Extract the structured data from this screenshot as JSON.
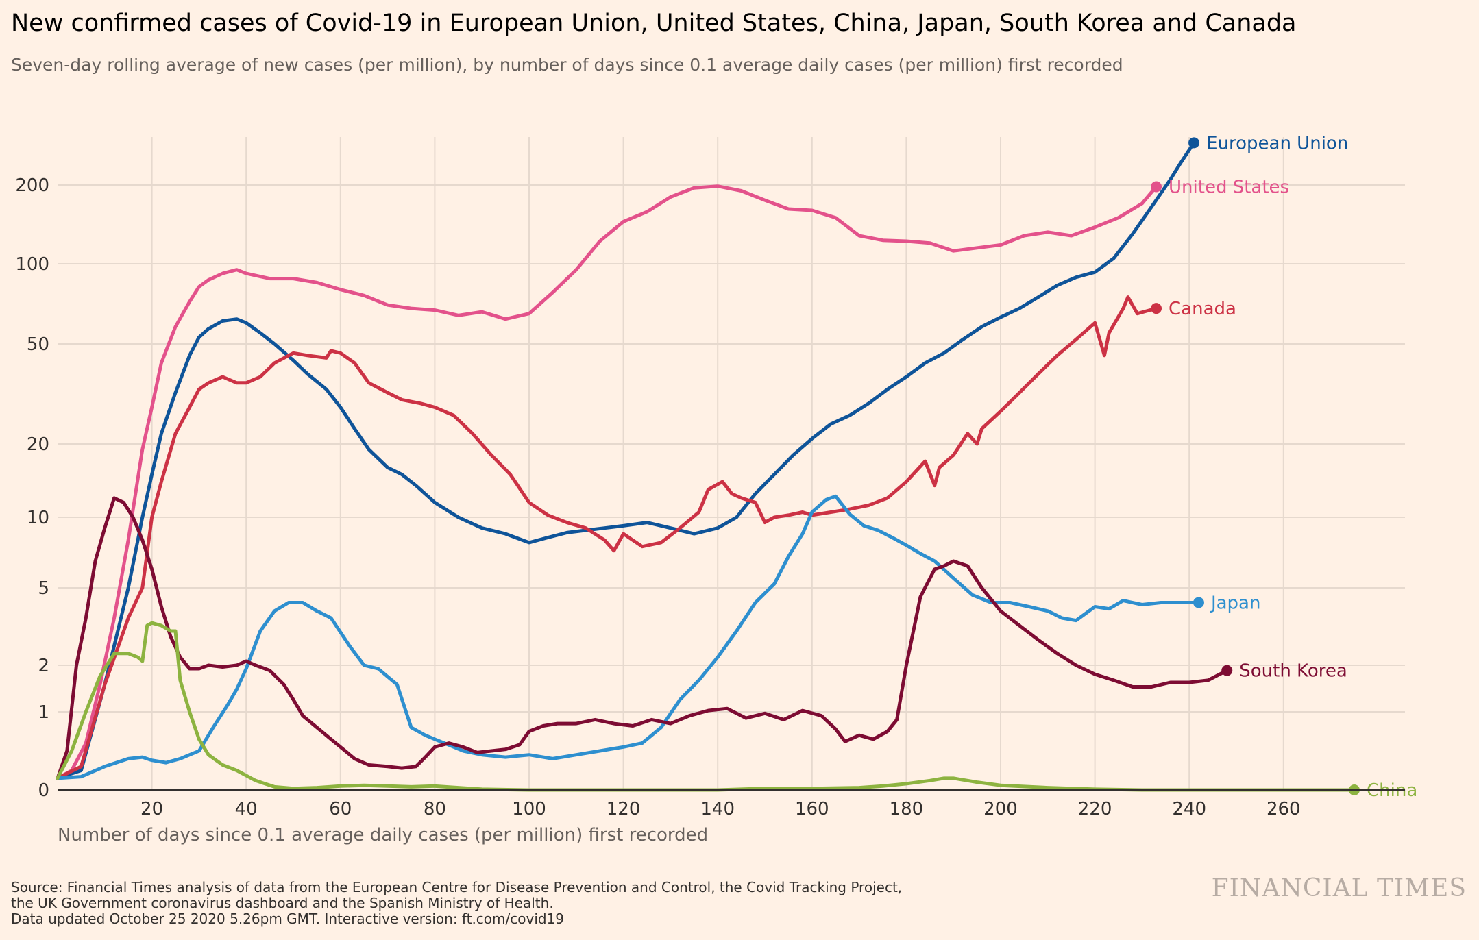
{
  "header": {
    "title": "New confirmed cases of Covid-19 in European Union, United States, China, Japan, South Korea and Canada",
    "subtitle": "Seven-day rolling average of new cases (per million), by number of days since 0.1 average daily cases (per million) first recorded"
  },
  "footer": {
    "source_lines": [
      "Source: Financial Times analysis of data from the European Centre for Disease Prevention and Control, the Covid Tracking Project,",
      "the UK Government coronavirus dashboard and the Spanish Ministry of Health.",
      "Data updated October 25 2020 5.26pm GMT. Interactive version: ft.com/covid19"
    ],
    "logo": "FINANCIAL TIMES"
  },
  "chart_data": {
    "type": "line",
    "title": "New confirmed cases of Covid-19 in European Union, United States, China, Japan, South Korea and Canada",
    "subtitle": "Seven-day rolling average of new cases (per million), by number of days since 0.1 average daily cases (per million) first recorded",
    "xlabel": "Number of days since 0.1 average daily cases (per million) first recorded",
    "ylabel": "",
    "y_scale": "symlog",
    "xlim": [
      0,
      275
    ],
    "ylim": [
      0,
      300
    ],
    "x_ticks": [
      20,
      40,
      60,
      80,
      100,
      120,
      140,
      160,
      180,
      200,
      220,
      240,
      260
    ],
    "y_ticks": [
      0,
      1,
      2,
      5,
      10,
      20,
      50,
      100,
      200
    ],
    "grid": true,
    "legend": "inline labels at line ends",
    "series": [
      {
        "name": "European Union",
        "color": "#0f5499",
        "x": [
          0,
          5,
          10,
          15,
          18,
          20,
          22,
          25,
          28,
          30,
          32,
          35,
          38,
          40,
          43,
          46,
          50,
          53,
          57,
          60,
          63,
          66,
          70,
          73,
          76,
          80,
          85,
          90,
          95,
          100,
          104,
          108,
          112,
          116,
          120,
          125,
          130,
          135,
          140,
          144,
          148,
          152,
          156,
          160,
          164,
          168,
          172,
          176,
          180,
          184,
          188,
          192,
          196,
          200,
          204,
          208,
          212,
          216,
          220,
          224,
          228,
          232,
          236,
          238,
          241
        ],
        "values": [
          0.15,
          0.25,
          1.5,
          5,
          10,
          15,
          22,
          32,
          45,
          53,
          57,
          61,
          62,
          60,
          55,
          50,
          43,
          38,
          33,
          28,
          23,
          19,
          16,
          15,
          13.5,
          11.5,
          10,
          9,
          8.5,
          7.8,
          8.2,
          8.6,
          8.8,
          9,
          9.2,
          9.5,
          9,
          8.5,
          9,
          10,
          12.5,
          15,
          18,
          21,
          24,
          26,
          29,
          33,
          37,
          42,
          46,
          52,
          58,
          63,
          68,
          75,
          83,
          89,
          93,
          105,
          130,
          165,
          210,
          240,
          290
        ]
      },
      {
        "name": "United States",
        "color": "#e3528b",
        "x": [
          0,
          3,
          6,
          9,
          12,
          15,
          18,
          20,
          22,
          25,
          28,
          30,
          32,
          35,
          38,
          40,
          45,
          50,
          55,
          60,
          65,
          70,
          75,
          80,
          85,
          90,
          95,
          100,
          105,
          110,
          115,
          120,
          125,
          130,
          135,
          140,
          145,
          150,
          155,
          160,
          165,
          170,
          175,
          180,
          185,
          190,
          195,
          200,
          205,
          210,
          215,
          220,
          225,
          230,
          233
        ],
        "values": [
          0.15,
          0.25,
          0.6,
          1.5,
          3.5,
          8,
          19,
          28,
          42,
          58,
          72,
          82,
          87,
          92,
          95,
          92,
          88,
          88,
          85,
          80,
          76,
          70,
          68,
          67,
          64,
          66,
          62,
          65,
          78,
          95,
          122,
          145,
          158,
          180,
          195,
          198,
          190,
          175,
          162,
          160,
          150,
          128,
          123,
          122,
          120,
          112,
          115,
          118,
          128,
          132,
          128,
          138,
          150,
          170,
          197
        ]
      },
      {
        "name": "Canada",
        "color": "#cc3245",
        "x": [
          0,
          5,
          10,
          15,
          18,
          20,
          22,
          25,
          28,
          30,
          32,
          35,
          38,
          40,
          43,
          46,
          50,
          53,
          57,
          58,
          60,
          63,
          66,
          70,
          73,
          77,
          80,
          84,
          88,
          92,
          96,
          100,
          104,
          108,
          112,
          116,
          118,
          120,
          124,
          128,
          132,
          136,
          138,
          141,
          143,
          145,
          148,
          150,
          152,
          155,
          158,
          160,
          164,
          168,
          172,
          176,
          180,
          184,
          186,
          187,
          190,
          193,
          195,
          196,
          200,
          204,
          208,
          212,
          216,
          220,
          222,
          223,
          226,
          227,
          229,
          233
        ],
        "values": [
          0.15,
          0.3,
          1.5,
          3.5,
          5,
          10,
          14,
          22,
          28,
          33,
          35,
          37,
          35,
          35,
          37,
          42,
          46,
          45,
          44,
          47,
          46,
          42,
          35,
          32,
          30,
          29,
          28,
          26,
          22,
          18,
          15,
          11.5,
          10.2,
          9.5,
          9,
          8,
          7.2,
          8.5,
          7.5,
          7.8,
          9,
          10.5,
          13,
          14,
          12.5,
          12,
          11.5,
          9.5,
          10,
          10.2,
          10.5,
          10.2,
          10.5,
          10.8,
          11.2,
          12,
          14,
          17,
          13.5,
          16,
          18,
          22,
          20,
          23,
          27,
          32,
          38,
          45,
          52,
          60,
          45,
          55,
          68,
          75,
          65,
          68
        ]
      },
      {
        "name": "Japan",
        "color": "#2e8fcf",
        "x": [
          0,
          5,
          10,
          15,
          18,
          20,
          23,
          26,
          28,
          30,
          33,
          36,
          38,
          40,
          43,
          46,
          49,
          52,
          55,
          58,
          62,
          65,
          68,
          72,
          75,
          78,
          82,
          86,
          90,
          95,
          100,
          105,
          110,
          115,
          120,
          124,
          128,
          132,
          136,
          140,
          144,
          148,
          152,
          155,
          158,
          160,
          163,
          165,
          168,
          171,
          174,
          177,
          180,
          183,
          186,
          190,
          194,
          198,
          202,
          206,
          210,
          213,
          216,
          220,
          223,
          226,
          230,
          234,
          238,
          242
        ],
        "values": [
          0.15,
          0.17,
          0.3,
          0.4,
          0.42,
          0.38,
          0.35,
          0.4,
          0.45,
          0.5,
          0.8,
          1.1,
          1.4,
          1.9,
          3,
          3.8,
          4.2,
          4.2,
          3.8,
          3.5,
          2.5,
          2,
          1.9,
          1.5,
          0.8,
          0.7,
          0.6,
          0.5,
          0.45,
          0.42,
          0.45,
          0.4,
          0.45,
          0.5,
          0.55,
          0.6,
          0.8,
          1.2,
          1.6,
          2.2,
          3,
          4.2,
          5.2,
          6.8,
          8.5,
          10.5,
          11.8,
          12.2,
          10.3,
          9.2,
          8.8,
          8.2,
          7.6,
          7,
          6.5,
          5.5,
          4.6,
          4.2,
          4.2,
          4,
          3.8,
          3.5,
          3.4,
          4,
          3.9,
          4.3,
          4.1,
          4.2,
          4.2,
          4.2
        ]
      },
      {
        "name": "South Korea",
        "color": "#7d0c33",
        "x": [
          0,
          2,
          4,
          6,
          8,
          10,
          12,
          14,
          16,
          18,
          20,
          22,
          24,
          26,
          28,
          30,
          32,
          35,
          38,
          40,
          42,
          45,
          48,
          50,
          52,
          55,
          58,
          60,
          63,
          66,
          70,
          73,
          76,
          78,
          80,
          83,
          86,
          89,
          92,
          95,
          98,
          100,
          103,
          106,
          110,
          114,
          118,
          122,
          126,
          130,
          134,
          138,
          142,
          146,
          150,
          154,
          158,
          162,
          165,
          167,
          170,
          173,
          176,
          178,
          180,
          183,
          186,
          188,
          190,
          193,
          196,
          200,
          204,
          208,
          212,
          216,
          220,
          224,
          228,
          232,
          236,
          240,
          244,
          248
        ],
        "values": [
          0.15,
          0.5,
          2,
          3.5,
          6.5,
          9,
          12,
          11.5,
          10,
          8,
          6,
          4,
          2.8,
          2.2,
          1.9,
          1.9,
          2,
          1.95,
          2,
          2.1,
          2,
          1.85,
          1.5,
          1.2,
          0.95,
          0.8,
          0.65,
          0.55,
          0.4,
          0.32,
          0.3,
          0.28,
          0.3,
          0.42,
          0.55,
          0.6,
          0.55,
          0.48,
          0.5,
          0.52,
          0.58,
          0.75,
          0.82,
          0.85,
          0.85,
          0.9,
          0.85,
          0.82,
          0.9,
          0.85,
          0.95,
          1.02,
          1.05,
          0.92,
          0.98,
          0.9,
          1.02,
          0.95,
          0.78,
          0.62,
          0.7,
          0.65,
          0.75,
          0.9,
          2,
          4.5,
          6,
          6.2,
          6.5,
          6.2,
          5,
          3.8,
          3.2,
          2.7,
          2.3,
          2,
          1.75,
          1.6,
          1.45,
          1.45,
          1.55,
          1.55,
          1.6,
          1.85
        ]
      },
      {
        "name": "China",
        "color": "#8db340",
        "x": [
          0,
          3,
          6,
          9,
          12,
          15,
          17,
          18,
          19,
          20,
          22,
          24,
          25,
          26,
          28,
          30,
          32,
          35,
          38,
          42,
          46,
          50,
          55,
          60,
          65,
          70,
          75,
          80,
          85,
          90,
          100,
          110,
          120,
          130,
          140,
          150,
          160,
          170,
          175,
          180,
          185,
          188,
          190,
          195,
          200,
          210,
          220,
          230,
          240,
          250,
          260,
          270,
          275
        ],
        "values": [
          0.15,
          0.5,
          1,
          1.7,
          2.3,
          2.3,
          2.2,
          2.1,
          3.2,
          3.3,
          3.2,
          3,
          3,
          1.6,
          1,
          0.65,
          0.45,
          0.32,
          0.25,
          0.12,
          0.04,
          0.02,
          0.03,
          0.05,
          0.06,
          0.05,
          0.04,
          0.05,
          0.03,
          0.01,
          0,
          0,
          0,
          0,
          0,
          0.02,
          0.02,
          0.03,
          0.05,
          0.08,
          0.12,
          0.15,
          0.15,
          0.1,
          0.06,
          0.03,
          0.01,
          0,
          0,
          0,
          0,
          0,
          0
        ]
      }
    ]
  }
}
